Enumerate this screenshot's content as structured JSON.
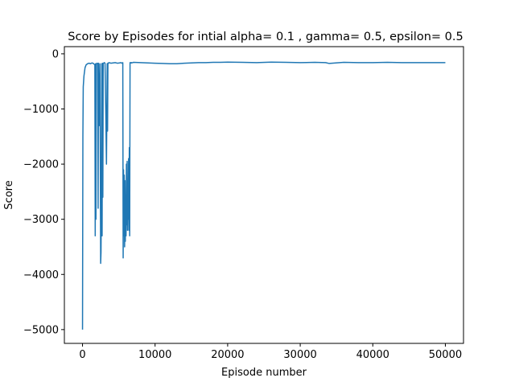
{
  "chart_data": {
    "type": "line",
    "title": "Score by Episodes for intial alpha= 0.1 , gamma= 0.5, epsilon= 0.5",
    "xlabel": "Episode number",
    "ylabel": "Score",
    "xlim": [
      -2500,
      52500
    ],
    "ylim": [
      -5250,
      130
    ],
    "xticks": [
      0,
      10000,
      20000,
      30000,
      40000,
      50000
    ],
    "xtick_labels": [
      "0",
      "10000",
      "20000",
      "30000",
      "40000",
      "50000"
    ],
    "yticks": [
      0,
      -1000,
      -2000,
      -3000,
      -4000,
      -5000
    ],
    "ytick_labels": [
      "0",
      "−1000",
      "−2000",
      "−3000",
      "−4000",
      "−5000"
    ],
    "grid": false,
    "legend": "none",
    "line_color": "#1f77b4",
    "series": [
      {
        "x": [
          0,
          50,
          100,
          200,
          350,
          500,
          700,
          900,
          1100,
          1300,
          1500,
          1700,
          1750,
          1800,
          1850,
          1900,
          2000,
          2100,
          2150,
          2200,
          2300,
          2400,
          2500,
          2550,
          2600,
          2650,
          2700,
          2750,
          2800,
          2850,
          2900,
          3000,
          3100,
          3200,
          3300,
          3400,
          3450,
          3500,
          3550,
          3600,
          3700,
          3900,
          4200,
          4500,
          4800,
          5100,
          5300,
          5400,
          5500,
          5550,
          5600,
          5650,
          5700,
          5750,
          5800,
          5850,
          5900,
          5950,
          6000,
          6050,
          6100,
          6150,
          6200,
          6250,
          6300,
          6350,
          6400,
          6450,
          6500,
          6550,
          6600,
          6650,
          6700,
          6750,
          6800,
          6900,
          7000,
          8000,
          9000,
          10000,
          11000,
          12000,
          13000,
          14000,
          15000,
          16000,
          17000,
          18000,
          19000,
          20000,
          22000,
          24000,
          26000,
          28000,
          30000,
          32000,
          33500,
          34000,
          36000,
          38000,
          40000,
          42000,
          44000,
          46000,
          48000,
          50000
        ],
        "y": [
          -5000,
          -1500,
          -600,
          -400,
          -250,
          -200,
          -180,
          -170,
          -180,
          -165,
          -175,
          -200,
          -3300,
          -180,
          -3000,
          -190,
          -170,
          -180,
          -2800,
          -170,
          -1300,
          -180,
          -3800,
          -3600,
          -2600,
          -180,
          -3300,
          -170,
          -2600,
          -175,
          -170,
          -160,
          -170,
          -1000,
          -2000,
          -180,
          -1400,
          -170,
          -165,
          -170,
          -160,
          -170,
          -165,
          -160,
          -170,
          -165,
          -160,
          -170,
          -165,
          -160,
          -3700,
          -2100,
          -3300,
          -2200,
          -3500,
          -2300,
          -3400,
          -2600,
          -3300,
          -2000,
          -3100,
          -1950,
          -3200,
          -2400,
          -3000,
          -1900,
          -3200,
          -1700,
          -3300,
          -160,
          -165,
          -160,
          -165,
          -160,
          -165,
          -160,
          -155,
          -160,
          -165,
          -170,
          -175,
          -180,
          -180,
          -170,
          -165,
          -160,
          -160,
          -155,
          -155,
          -150,
          -155,
          -160,
          -150,
          -155,
          -160,
          -155,
          -160,
          -175,
          -155,
          -160,
          -160,
          -155,
          -160,
          -160,
          -160,
          -160
        ]
      }
    ]
  }
}
